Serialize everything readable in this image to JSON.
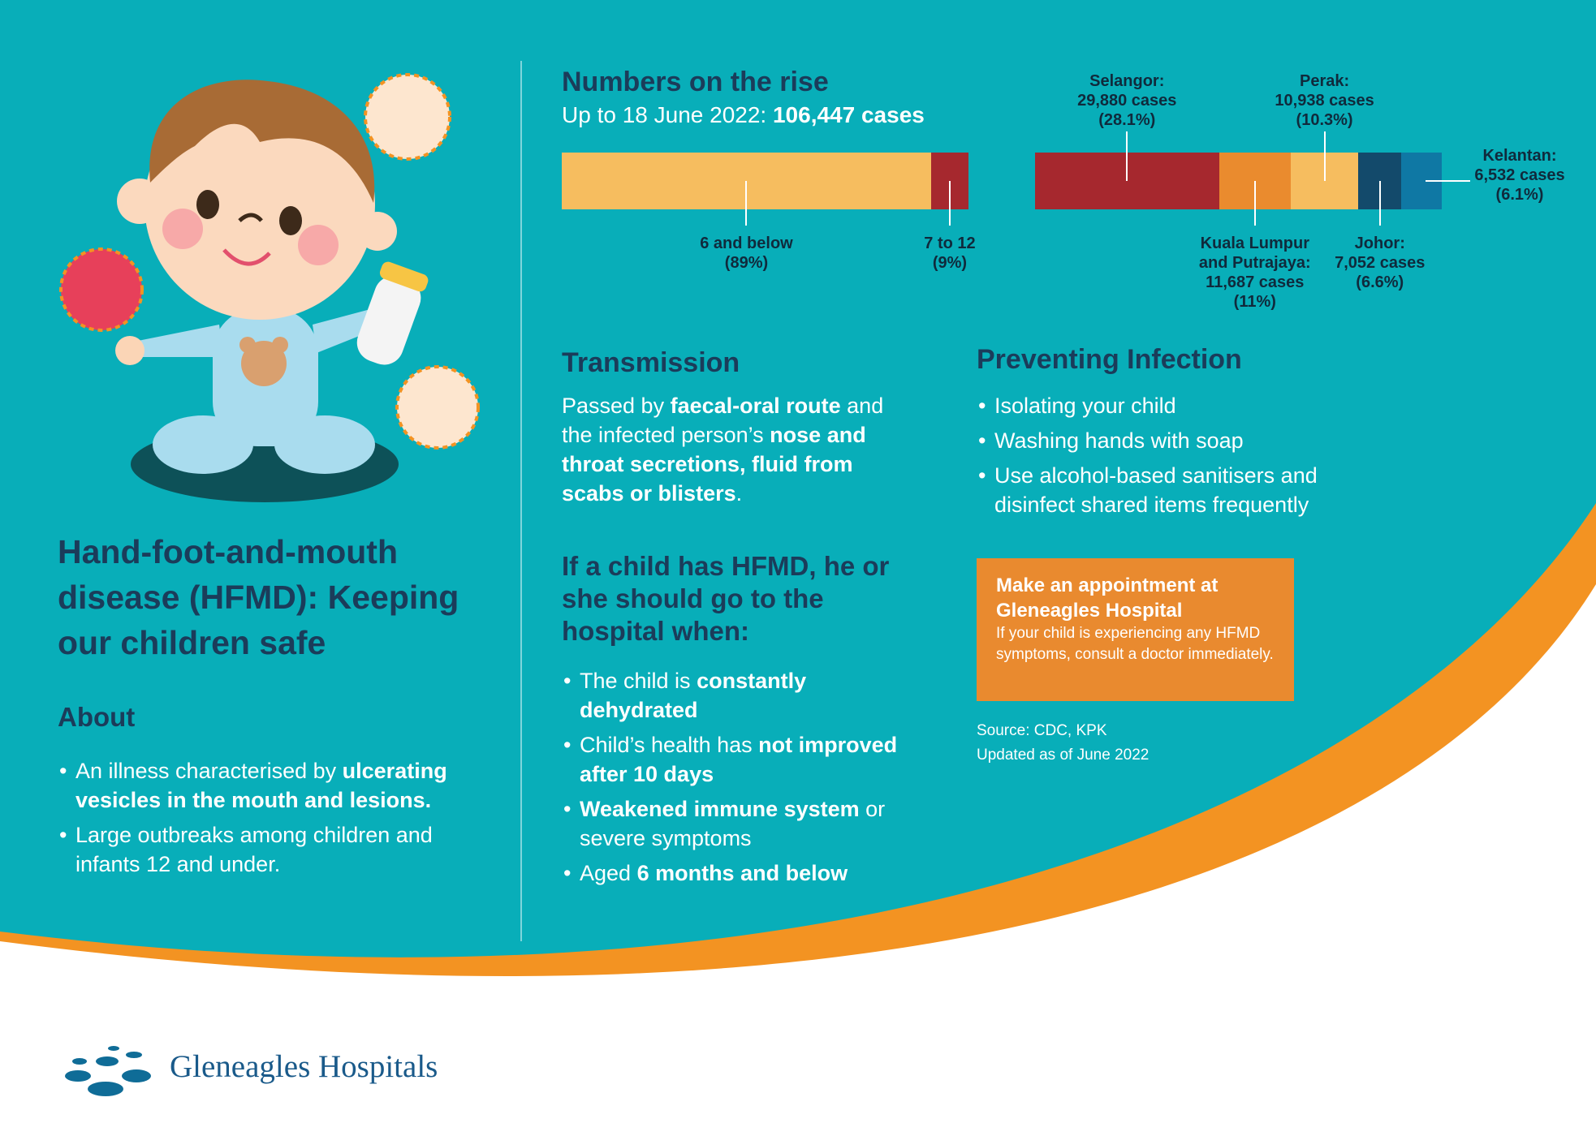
{
  "title": "Hand-foot-and-mouth disease (HFMD): Keeping our children safe",
  "about": {
    "heading": "About",
    "items": [
      [
        {
          "text": "An illness characterised by "
        },
        {
          "text": "ulcerating vesicles in the mouth and lesions.",
          "bold": true
        }
      ],
      [
        {
          "text": "Large outbreaks among children and infants 12 and under."
        }
      ]
    ]
  },
  "numbers": {
    "heading": "Numbers on the rise",
    "subtitle": [
      {
        "text": "Up to 18 June 2022: "
      },
      {
        "text": "106,447 cases",
        "bold": true
      }
    ]
  },
  "chart_data": [
    {
      "type": "stacked-bar",
      "categories": [
        "6 and below",
        "7 to 12"
      ],
      "values": [
        89,
        9
      ],
      "value_labels": [
        "(89%)",
        "(9%)"
      ],
      "colors": [
        "#f6bd5f",
        "#a6282e"
      ]
    },
    {
      "type": "stacked-bar",
      "categories": [
        "Selangor:",
        "Kuala Lumpur and Putrajaya:",
        "Perak:",
        "Johor:",
        "Kelantan:"
      ],
      "values": [
        29880,
        11687,
        10938,
        7052,
        6532
      ],
      "value_labels": [
        "29,880 cases",
        "11,687 cases",
        "10,938 cases",
        "7,052 cases",
        "6,532 cases"
      ],
      "share_labels": [
        "(28.1%)",
        "(11%)",
        "(10.3%)",
        "(6.6%)",
        "(6.1%)"
      ],
      "colors": [
        "#a6282e",
        "#ea8b2e",
        "#f6bd5f",
        "#134a6b",
        "#0f78a4"
      ]
    }
  ],
  "transmission": {
    "heading": "Transmission",
    "text": [
      {
        "text": "Passed by "
      },
      {
        "text": "faecal-oral route",
        "bold": true
      },
      {
        "text": " and the infected person’s "
      },
      {
        "text": "nose and throat secretions, fluid from scabs or blisters",
        "bold": true
      },
      {
        "text": "."
      }
    ]
  },
  "hospital": {
    "heading": "If a child has HFMD, he or she should go to the hospital when:",
    "items": [
      [
        {
          "text": "The child is "
        },
        {
          "text": "constantly dehydrated",
          "bold": true
        }
      ],
      [
        {
          "text": "Child’s health has "
        },
        {
          "text": "not improved after 10 days",
          "bold": true
        }
      ],
      [
        {
          "text": "Weakened immune system",
          "bold": true
        },
        {
          "text": " or severe symptoms"
        }
      ],
      [
        {
          "text": "Aged "
        },
        {
          "text": "6 months and below",
          "bold": true
        }
      ]
    ]
  },
  "prevention": {
    "heading": "Preventing Infection",
    "items": [
      "Isolating your child",
      "Washing hands with soap",
      "Use alcohol-based sanitisers and disinfect shared items frequently"
    ]
  },
  "cta": {
    "heading": "Make an appointment at Gleneagles Hospital",
    "text": "If your child is experiencing any HFMD symptoms, consult a doctor immediately."
  },
  "source": [
    "Source: CDC, KPK",
    "Updated as of June 2022"
  ],
  "logo": "Gleneagles Hospitals"
}
